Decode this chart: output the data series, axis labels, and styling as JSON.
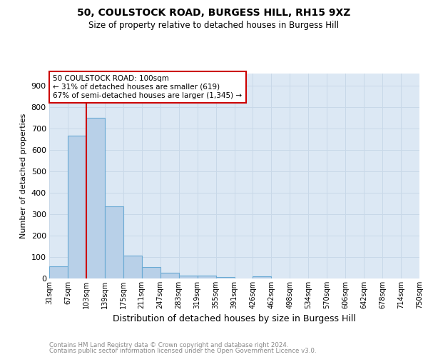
{
  "title1": "50, COULSTOCK ROAD, BURGESS HILL, RH15 9XZ",
  "title2": "Size of property relative to detached houses in Burgess Hill",
  "xlabel": "Distribution of detached houses by size in Burgess Hill",
  "ylabel": "Number of detached properties",
  "bar_values": [
    58,
    667,
    750,
    338,
    108,
    55,
    27,
    15,
    12,
    8,
    0,
    10,
    0,
    0,
    0,
    0,
    0,
    0,
    0,
    0
  ],
  "bin_labels": [
    "31sqm",
    "67sqm",
    "103sqm",
    "139sqm",
    "175sqm",
    "211sqm",
    "247sqm",
    "283sqm",
    "319sqm",
    "355sqm",
    "391sqm",
    "426sqm",
    "462sqm",
    "498sqm",
    "534sqm",
    "570sqm",
    "606sqm",
    "642sqm",
    "678sqm",
    "714sqm",
    "750sqm"
  ],
  "bar_color": "#b8d0e8",
  "bar_edge_color": "#6aaad4",
  "property_line_x": 1.5,
  "property_line_color": "#cc0000",
  "annotation_text": "50 COULSTOCK ROAD: 100sqm\n← 31% of detached houses are smaller (619)\n67% of semi-detached houses are larger (1,345) →",
  "annotation_box_color": "#ffffff",
  "annotation_box_edge_color": "#cc0000",
  "ylim": [
    0,
    960
  ],
  "yticks": [
    0,
    100,
    200,
    300,
    400,
    500,
    600,
    700,
    800,
    900
  ],
  "footer1": "Contains HM Land Registry data © Crown copyright and database right 2024.",
  "footer2": "Contains public sector information licensed under the Open Government Licence v3.0.",
  "grid_color": "#c8d8e8",
  "background_color": "#dce8f4",
  "fig_background": "#ffffff"
}
